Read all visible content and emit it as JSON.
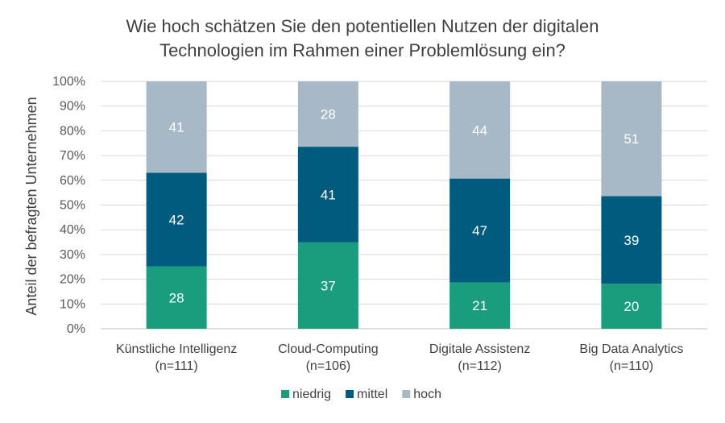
{
  "chart_data": {
    "type": "bar",
    "stacked": true,
    "normalized": true,
    "title": [
      "Wie hoch schätzen Sie den potentiellen Nutzen der digitalen",
      "Technologien im Rahmen einer Problemlösung ein?"
    ],
    "ylabel": "Anteil der befragten Unternehmen",
    "xlabel": "",
    "ylim": [
      0,
      100
    ],
    "y_ticks": [
      "0%",
      "10%",
      "20%",
      "30%",
      "40%",
      "50%",
      "60%",
      "70%",
      "80%",
      "90%",
      "100%"
    ],
    "grid": true,
    "legend_position": "bottom",
    "categories": [
      [
        "Künstliche Intelligenz",
        "(n=111)"
      ],
      [
        "Cloud-Computing",
        "(n=106)"
      ],
      [
        "Digitale Assistenz",
        "(n=112)"
      ],
      [
        "Big Data Analytics",
        "(n=110)"
      ]
    ],
    "series": [
      {
        "name": "niedrig",
        "color": "#1a9d7c",
        "values": [
          28,
          37,
          21,
          20
        ]
      },
      {
        "name": "mittel",
        "color": "#005b7f",
        "values": [
          42,
          41,
          47,
          39
        ]
      },
      {
        "name": "hoch",
        "color": "#a7b9c6",
        "values": [
          41,
          28,
          44,
          51
        ]
      }
    ]
  }
}
